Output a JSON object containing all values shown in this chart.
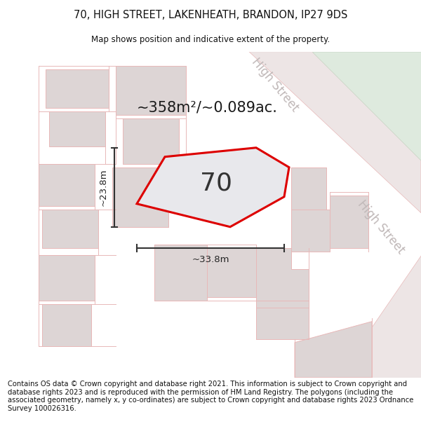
{
  "title": "70, HIGH STREET, LAKENHEATH, BRANDON, IP27 9DS",
  "subtitle": "Map shows position and indicative extent of the property.",
  "footer": "Contains OS data © Crown copyright and database right 2021. This information is subject to Crown copyright and database rights 2023 and is reproduced with the permission of HM Land Registry. The polygons (including the associated geometry, namely x, y co-ordinates) are subject to Crown copyright and database rights 2023 Ordnance Survey 100026316.",
  "area_text": "~358m²/~0.089ac.",
  "width_label": "~33.8m",
  "height_label": "~23.8m",
  "property_number": "70",
  "bg_color": "#ffffff",
  "map_bg": "#f7f2f2",
  "highlight_poly_color": "#dd0000",
  "highlight_poly_fill": "#e8e8ec",
  "street_label_color": "#c0b8b8",
  "dim_line_color": "#333333",
  "title_fontsize": 10.5,
  "subtitle_fontsize": 8.5,
  "footer_fontsize": 7.2,
  "area_fontsize": 15,
  "number_fontsize": 26,
  "dim_fontsize": 9.5,
  "street_fontsize": 12,
  "cadastral_color": "#e8b8b8",
  "building_fill": "#ddd5d5",
  "building_stroke": "#c8a8a8",
  "road_fill": "#ede5e5",
  "green_fill": "#deeade"
}
